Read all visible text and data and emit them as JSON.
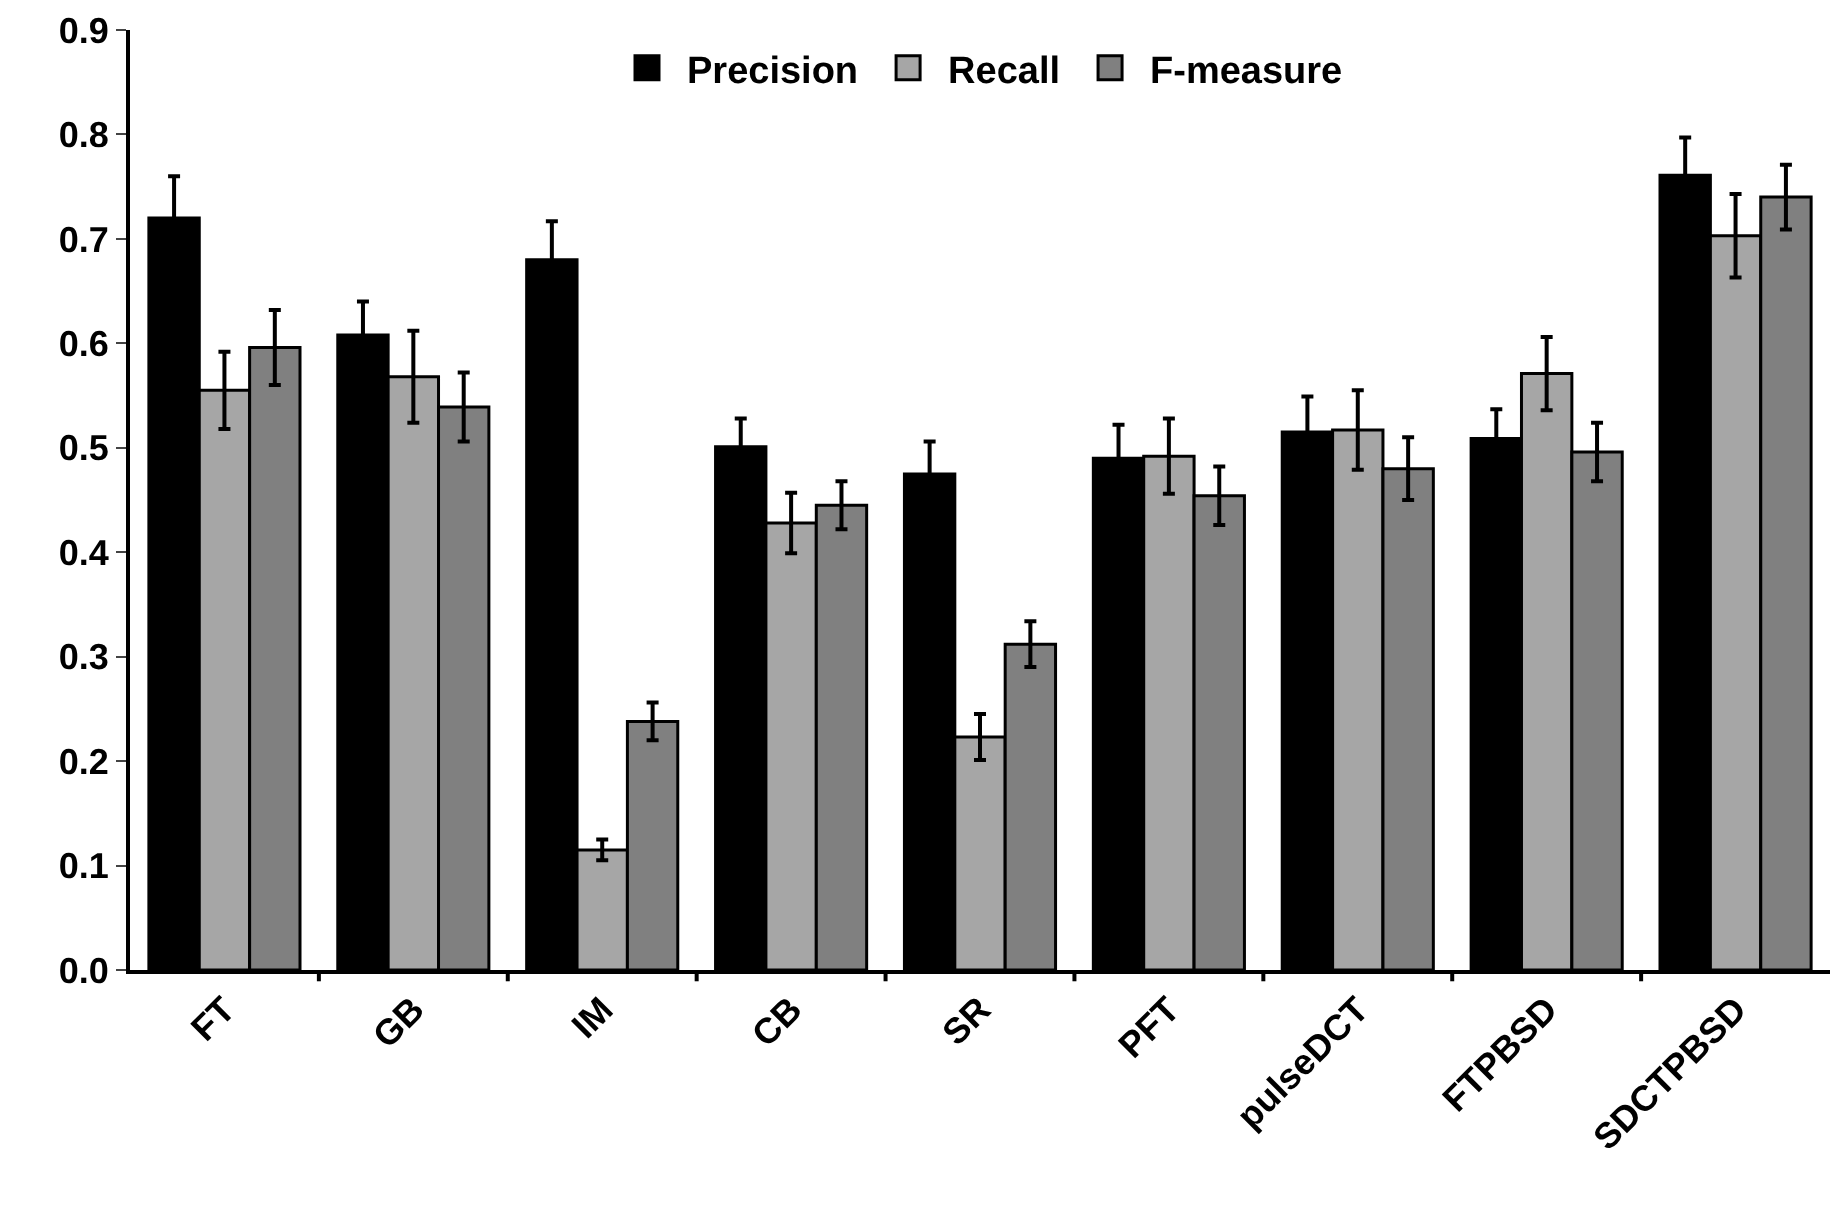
{
  "chart_data": {
    "type": "bar",
    "categories": [
      "FT",
      "GB",
      "IM",
      "CB",
      "SR",
      "PFT",
      "pulseDCT",
      "FTPBSD",
      "SDCTPBSD"
    ],
    "series": [
      {
        "name": "Precision",
        "color": "#000000",
        "values": [
          0.72,
          0.608,
          0.68,
          0.501,
          0.475,
          0.49,
          0.515,
          0.509,
          0.761
        ],
        "errors": [
          0.04,
          0.032,
          0.037,
          0.027,
          0.031,
          0.032,
          0.034,
          0.028,
          0.036
        ]
      },
      {
        "name": "Recall",
        "color": "#a6a6a6",
        "values": [
          0.555,
          0.568,
          0.115,
          0.428,
          0.223,
          0.492,
          0.517,
          0.571,
          0.703
        ],
        "errors": [
          0.037,
          0.044,
          0.01,
          0.029,
          0.022,
          0.036,
          0.038,
          0.035,
          0.04
        ]
      },
      {
        "name": "F-measure",
        "color": "#808080",
        "values": [
          0.596,
          0.539,
          0.238,
          0.445,
          0.312,
          0.454,
          0.48,
          0.496,
          0.74
        ],
        "errors": [
          0.036,
          0.033,
          0.018,
          0.023,
          0.022,
          0.028,
          0.03,
          0.028,
          0.031
        ]
      }
    ],
    "ylim": [
      0,
      0.9
    ],
    "yticks": [
      {
        "value": 0,
        "label": "0.0"
      },
      0.1,
      0.2,
      0.3,
      0.4,
      0.5,
      0.6,
      0.7,
      0.8,
      0.9
    ],
    "grid": false,
    "legend": "top"
  }
}
